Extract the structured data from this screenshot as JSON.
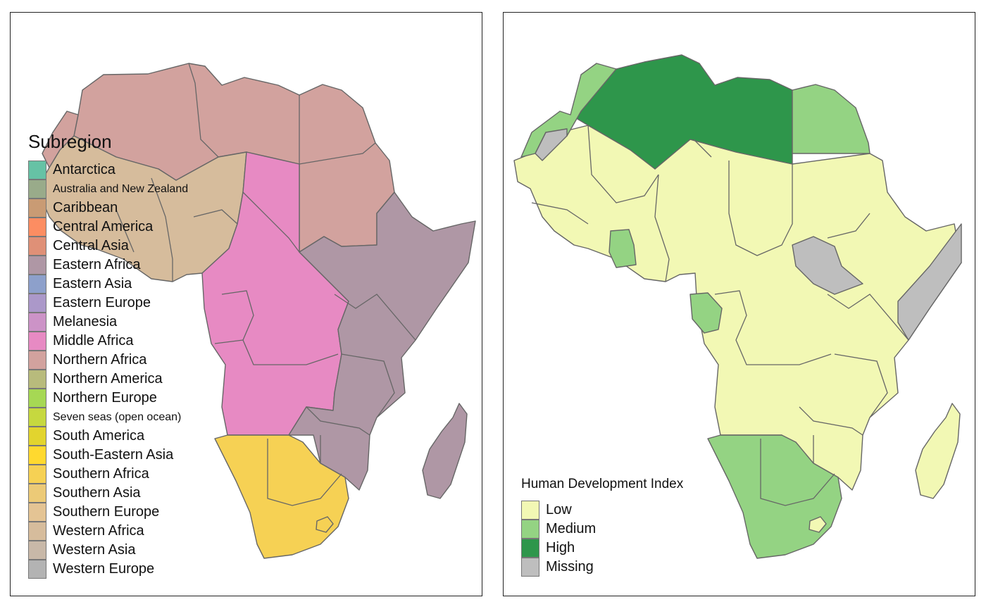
{
  "left_map": {
    "legend": {
      "title": "Subregion",
      "items": [
        {
          "label": "Antarctica",
          "color": "#66c2a5"
        },
        {
          "label": "Australia and New Zealand",
          "color": "#99ab8a"
        },
        {
          "label": "Caribbean",
          "color": "#c99b74"
        },
        {
          "label": "Central America",
          "color": "#fc8d62"
        },
        {
          "label": "Central Asia",
          "color": "#df9077"
        },
        {
          "label": "Eastern Africa",
          "color": "#af97a5"
        },
        {
          "label": "Eastern Asia",
          "color": "#8da0cb"
        },
        {
          "label": "Eastern Europe",
          "color": "#ab98c9"
        },
        {
          "label": "Melanesia",
          "color": "#cc93c7"
        },
        {
          "label": "Middle Africa",
          "color": "#e78ac3"
        },
        {
          "label": "Northern Africa",
          "color": "#d2a29e"
        },
        {
          "label": "Northern America",
          "color": "#b8bb7c"
        },
        {
          "label": "Northern Europe",
          "color": "#a6d854"
        },
        {
          "label": "Seven seas (open ocean)",
          "color": "#c6d83f"
        },
        {
          "label": "South America",
          "color": "#e2d42e"
        },
        {
          "label": "South-Eastern Asia",
          "color": "#ffd92f"
        },
        {
          "label": "Southern Africa",
          "color": "#f6d154"
        },
        {
          "label": "Southern Asia",
          "color": "#ecca77"
        },
        {
          "label": "Southern Europe",
          "color": "#e4c494"
        },
        {
          "label": "Western Africa",
          "color": "#d6bc9c"
        },
        {
          "label": "Western Asia",
          "color": "#c8b8a8"
        },
        {
          "label": "Western Europe",
          "color": "#b3b3b3"
        }
      ]
    }
  },
  "right_map": {
    "legend": {
      "title": "Human Development Index",
      "items": [
        {
          "label": "Low",
          "color": "#f2f8b4"
        },
        {
          "label": "Medium",
          "color": "#94d383"
        },
        {
          "label": "High",
          "color": "#2e964b"
        },
        {
          "label": "Missing",
          "color": "#bebebe"
        }
      ]
    }
  }
}
